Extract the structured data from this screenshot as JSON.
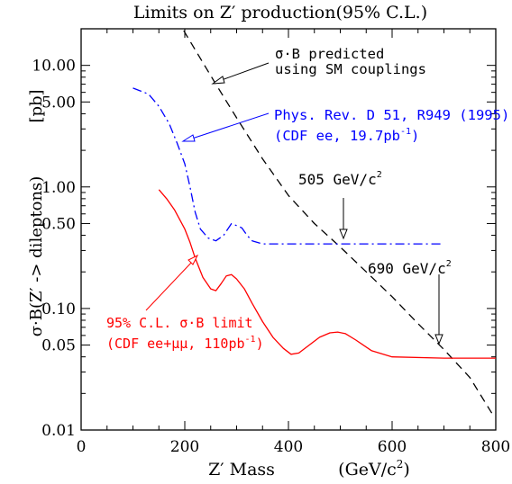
{
  "chart_data": {
    "type": "line",
    "title": "Limits on Z′ production(95% C.L.)",
    "xlabel": "Z′ Mass",
    "xlabel_units": "(GeV/c²)",
    "ylabel": "σ·B(Z′ -> dileptons)",
    "ylabel_units": "[pb]",
    "xlim": [
      0,
      800
    ],
    "ylim": [
      0.01,
      20
    ],
    "yscale": "log",
    "x_ticks": [
      0,
      200,
      400,
      600,
      800
    ],
    "y_ticks": [
      {
        "value": 0.01,
        "label": "0.01"
      },
      {
        "value": 0.05,
        "label": "0.05"
      },
      {
        "value": 0.1,
        "label": "0.10"
      },
      {
        "value": 0.5,
        "label": "0.50"
      },
      {
        "value": 1,
        "label": "1.00"
      },
      {
        "value": 5,
        "label": "5.00"
      },
      {
        "value": 10,
        "label": "10.00"
      }
    ],
    "grid": false,
    "series": [
      {
        "id": "sm",
        "color": "#000000",
        "style": "dashed",
        "x": [
          198,
          260,
          300,
          350,
          400,
          450,
          500,
          550,
          600,
          650,
          700,
          750,
          795
        ],
        "y": [
          19.3,
          7.0,
          3.7,
          1.7,
          0.85,
          0.5,
          0.32,
          0.2,
          0.125,
          0.075,
          0.046,
          0.027,
          0.0132
        ]
      },
      {
        "id": "run0",
        "color": "#0000ff",
        "style": "dashdot",
        "x": [
          100,
          130,
          150,
          170,
          185,
          200,
          210,
          220,
          230,
          245,
          260,
          275,
          290,
          300,
          310,
          320,
          330,
          350,
          400,
          500,
          600,
          700
        ],
        "y": [
          6.5,
          5.8,
          4.6,
          3.3,
          2.3,
          1.55,
          1.0,
          0.62,
          0.45,
          0.38,
          0.36,
          0.4,
          0.5,
          0.48,
          0.46,
          0.4,
          0.36,
          0.34,
          0.34,
          0.34,
          0.34,
          0.34
        ]
      },
      {
        "id": "run1",
        "color": "#ff0000",
        "style": "solid",
        "x": [
          150,
          165,
          180,
          200,
          210,
          220,
          235,
          250,
          260,
          270,
          280,
          290,
          300,
          315,
          330,
          350,
          370,
          390,
          405,
          420,
          440,
          460,
          480,
          495,
          510,
          530,
          560,
          600,
          700,
          800
        ],
        "y": [
          0.95,
          0.8,
          0.65,
          0.45,
          0.35,
          0.26,
          0.18,
          0.145,
          0.14,
          0.16,
          0.185,
          0.19,
          0.175,
          0.145,
          0.11,
          0.078,
          0.058,
          0.047,
          0.042,
          0.043,
          0.05,
          0.058,
          0.063,
          0.064,
          0.062,
          0.055,
          0.045,
          0.04,
          0.039,
          0.039
        ]
      }
    ]
  },
  "annotations": {
    "sm_line1": "σ·B predicted",
    "sm_line2": "using SM couplings",
    "run0_line1": "Phys. Rev. D 51, R949 (1995)",
    "run0_line2_a": "(CDF ee, 19.7pb",
    "run0_line2_sup": "-1",
    "run0_line2_b": ")",
    "limit_505": "505 GeV/c",
    "limit_505_sup": "2",
    "limit_690": "690 GeV/c",
    "limit_690_sup": "2",
    "run1_line1": "95% C.L. σ·B limit",
    "run1_line2_a": "(CDF ee+μμ, 110pb",
    "run1_line2_sup": "-1",
    "run1_line2_b": ")"
  },
  "colors": {
    "axis": "#000000",
    "blue": "#0000ff",
    "red": "#ff0000"
  }
}
